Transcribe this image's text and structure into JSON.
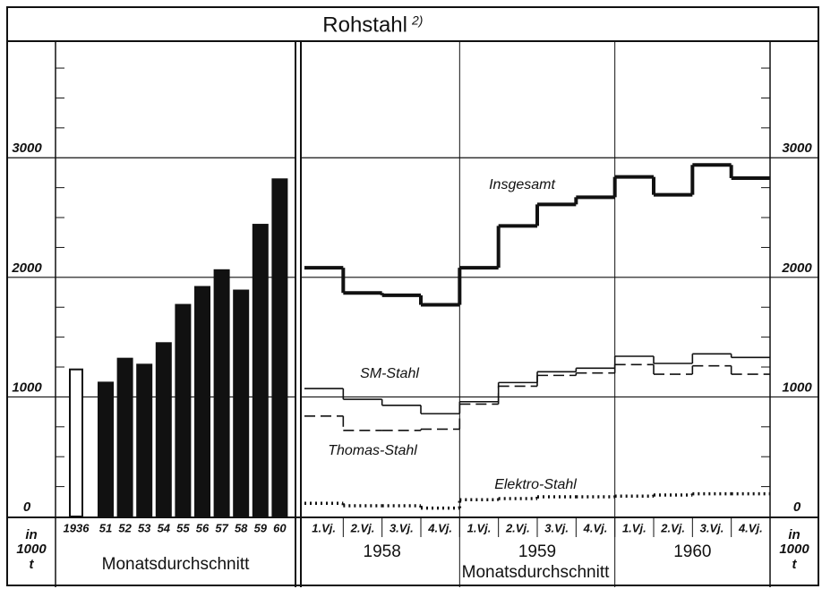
{
  "header": {
    "title": "Rohstahl",
    "note": "2)"
  },
  "unit_label": [
    "in",
    "1000",
    "t"
  ],
  "chart_data": [
    {
      "type": "bar",
      "categories": [
        "1936",
        "51",
        "52",
        "53",
        "54",
        "55",
        "56",
        "57",
        "58",
        "59",
        "60"
      ],
      "values": [
        1230,
        1120,
        1320,
        1270,
        1450,
        1770,
        1920,
        2060,
        1890,
        2440,
        2820
      ],
      "colors": [
        "#ffffff",
        "#111111",
        "#111111",
        "#111111",
        "#111111",
        "#111111",
        "#111111",
        "#111111",
        "#111111",
        "#111111",
        "#111111"
      ],
      "ylim": [
        0,
        3975
      ],
      "yticks": [
        0,
        1000,
        2000,
        3000
      ],
      "yticks_minor": [
        250,
        500,
        750,
        1250,
        1500,
        1750,
        2250,
        2500,
        2750,
        3250,
        3500,
        3750
      ],
      "grid": true,
      "xlabel": "Monatsdurchschnitt"
    },
    {
      "type": "step",
      "categories": [
        "1.Vj.",
        "2.Vj.",
        "3.Vj.",
        "4.Vj.",
        "1.Vj.",
        "2.Vj.",
        "3.Vj.",
        "4.Vj.",
        "1.Vj.",
        "2.Vj.",
        "3.Vj.",
        "4.Vj."
      ],
      "groups": [
        "1958",
        "1959",
        "1960"
      ],
      "series": [
        {
          "name": "Insgesamt",
          "color": "#111111",
          "style": "thick",
          "values": [
            2080,
            1870,
            1850,
            1770,
            2080,
            2430,
            2610,
            2670,
            2840,
            2690,
            2940,
            2830
          ]
        },
        {
          "name": "SM-Stahl",
          "color": "#111111",
          "style": "solid",
          "values": [
            1070,
            980,
            930,
            860,
            960,
            1120,
            1210,
            1240,
            1340,
            1280,
            1360,
            1330
          ]
        },
        {
          "name": "Thomas-Stahl",
          "color": "#111111",
          "style": "dashed",
          "values": [
            840,
            720,
            720,
            730,
            940,
            1090,
            1180,
            1200,
            1270,
            1190,
            1260,
            1190
          ]
        },
        {
          "name": "Elektro-Stahl",
          "color": "#111111",
          "style": "dotted",
          "values": [
            110,
            90,
            90,
            70,
            140,
            150,
            165,
            165,
            170,
            180,
            190,
            190
          ]
        }
      ],
      "ylim": [
        0,
        3975
      ],
      "yticks": [
        0,
        1000,
        2000,
        3000
      ],
      "yticks_minor": [
        250,
        500,
        750,
        1250,
        1500,
        1750,
        2250,
        2500,
        2750,
        3250,
        3500,
        3750
      ],
      "grid": true,
      "xlabel": "Monatsdurchschnitt"
    }
  ]
}
